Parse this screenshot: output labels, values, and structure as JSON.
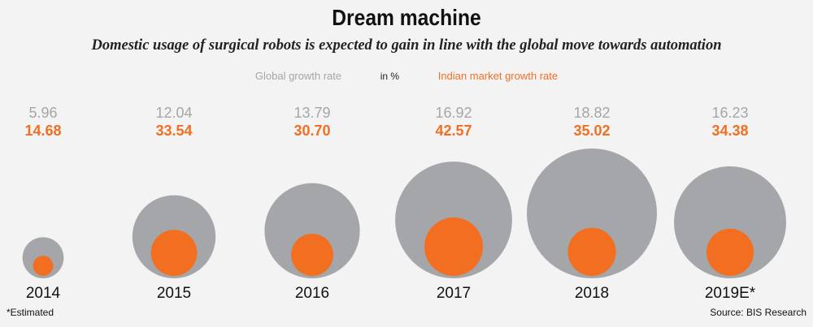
{
  "title": "Dream machine",
  "subtitle": "Domestic usage of surgical robots is expected to gain in line with the global move towards automation",
  "legend": {
    "global": "Global growth rate",
    "unit": "in %",
    "india": "Indian market growth rate"
  },
  "footnote": "*Estimated",
  "source": "Source: BIS Research",
  "colors": {
    "global": "#a4a6aa",
    "india": "#f26f21",
    "background": "#f3f3f3"
  },
  "chart_data": {
    "type": "bubble",
    "categories": [
      "2014",
      "2015",
      "2016",
      "2017",
      "2018",
      "2019E*"
    ],
    "series": [
      {
        "name": "Global growth rate",
        "values": [
          5.96,
          12.04,
          13.79,
          16.92,
          18.82,
          16.23
        ]
      },
      {
        "name": "Indian market growth rate",
        "values": [
          14.68,
          33.54,
          30.7,
          42.57,
          35.02,
          34.38
        ]
      }
    ],
    "value_labels": {
      "global": [
        "5.96",
        "12.04",
        "13.79",
        "16.92",
        "18.82",
        "16.23"
      ],
      "india": [
        "14.68",
        "33.54",
        "30.70",
        "42.57",
        "35.02",
        "34.38"
      ]
    },
    "unit": "%"
  }
}
